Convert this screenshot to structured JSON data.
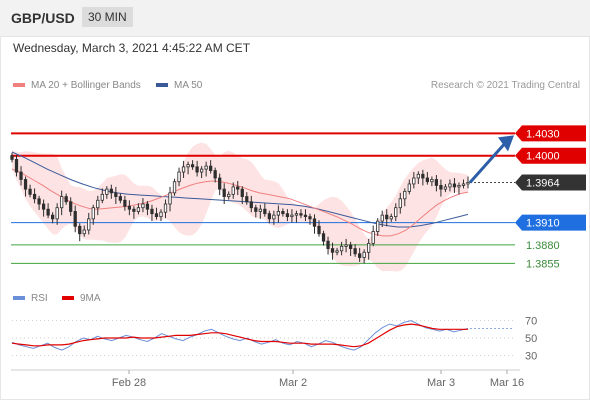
{
  "header": {
    "pair": "GBP/USD",
    "timeframe": "30 MIN"
  },
  "datetime": "Wednesday, March 3, 2021 4:45:22 AM CET",
  "legend": {
    "ma20": "MA 20 + Bollinger Bands",
    "ma50": "MA 50",
    "credit": "Research © 2021 Trading Central",
    "rsi": "RSI",
    "ma9": "9MA"
  },
  "colors": {
    "ma20": "#f08080",
    "ma50": "#3a5a9a",
    "band": "#fcdcdc",
    "resistance": "#e00000",
    "support": "#1f6fe0",
    "target": "#3fa33f",
    "candle": "#2e2e2e",
    "rsi": "#6b8fd8",
    "rsi_ma": "#e00000",
    "arrow": "#2d5fa8"
  },
  "chart_data": [
    {
      "type": "line",
      "title": "",
      "x_ticks": [
        "Feb 28",
        "Mar 2",
        "Mar 3",
        "Mar 16"
      ],
      "ylim": [
        1.383,
        1.4075
      ],
      "levels": [
        {
          "value": 1.403,
          "label": "1.4030",
          "kind": "resistance"
        },
        {
          "value": 1.4,
          "label": "1.4000",
          "kind": "resistance"
        },
        {
          "value": 1.3964,
          "label": "1.3964",
          "kind": "last"
        },
        {
          "value": 1.391,
          "label": "1.3910",
          "kind": "support"
        },
        {
          "value": 1.388,
          "label": "1.3880",
          "kind": "target"
        },
        {
          "value": 1.3855,
          "label": "1.3855",
          "kind": "target"
        }
      ],
      "close": [
        1.3995,
        1.3978,
        1.3968,
        1.3955,
        1.3948,
        1.3942,
        1.3935,
        1.3928,
        1.392,
        1.3915,
        1.393,
        1.3945,
        1.3938,
        1.3925,
        1.3905,
        1.3895,
        1.39,
        1.3915,
        1.393,
        1.394,
        1.3948,
        1.3955,
        1.395,
        1.3945,
        1.394,
        1.3932,
        1.3928,
        1.3925,
        1.393,
        1.3935,
        1.3928,
        1.3922,
        1.3918,
        1.3924,
        1.3935,
        1.395,
        1.3965,
        1.3978,
        1.3985,
        1.3988,
        1.3985,
        1.3978,
        1.3982,
        1.3986,
        1.398,
        1.397,
        1.3955,
        1.3945,
        1.3948,
        1.3958,
        1.3955,
        1.3945,
        1.3938,
        1.393,
        1.3925,
        1.3928,
        1.3922,
        1.3915,
        1.392,
        1.3925,
        1.3922,
        1.3918,
        1.392,
        1.3922,
        1.392,
        1.3918,
        1.3915,
        1.3905,
        1.3895,
        1.3885,
        1.3875,
        1.387,
        1.3872,
        1.3878,
        1.388,
        1.3875,
        1.3868,
        1.3863,
        1.387,
        1.3882,
        1.3898,
        1.3912,
        1.392,
        1.3915,
        1.3918,
        1.393,
        1.3942,
        1.3952,
        1.3962,
        1.397,
        1.3975,
        1.397,
        1.3965,
        1.3968,
        1.396,
        1.3955,
        1.3958,
        1.3962,
        1.3958,
        1.396,
        1.3962,
        1.3964
      ],
      "ma20": [
        1.3982,
        1.3978,
        1.3972,
        1.3966,
        1.396,
        1.3953,
        1.3947,
        1.3941,
        1.3936,
        1.3932,
        1.3929,
        1.3928,
        1.3929,
        1.393,
        1.3931,
        1.3932,
        1.3934,
        1.3936,
        1.3939,
        1.3943,
        1.3947,
        1.3952,
        1.3956,
        1.396,
        1.3963,
        1.3965,
        1.3966,
        1.3965,
        1.3963,
        1.396,
        1.3957,
        1.3953,
        1.395,
        1.3948,
        1.3946,
        1.3944,
        1.3942,
        1.3938,
        1.3934,
        1.393,
        1.3926,
        1.3922,
        1.3918,
        1.3913,
        1.3908,
        1.3902,
        1.3897,
        1.3894,
        1.3892,
        1.3892,
        1.3895,
        1.39,
        1.3908,
        1.3917,
        1.3926,
        1.3934,
        1.394,
        1.3945,
        1.3949,
        1.3951
      ],
      "ma50": [
        1.4005,
        1.3998,
        1.399,
        1.3982,
        1.3975,
        1.3968,
        1.3962,
        1.3957,
        1.3953,
        1.395,
        1.3948,
        1.3947,
        1.3946,
        1.3945,
        1.3944,
        1.3943,
        1.3942,
        1.3941,
        1.394,
        1.3939,
        1.3938,
        1.3937,
        1.3936,
        1.3935,
        1.3934,
        1.3932,
        1.3929,
        1.3925,
        1.3921,
        1.3917,
        1.3913,
        1.3909,
        1.3906,
        1.3904,
        1.3904,
        1.3906,
        1.3909,
        1.3913,
        1.3917,
        1.3921
      ],
      "legend": [
        "MA 20 + Bollinger Bands",
        "MA 50"
      ]
    },
    {
      "type": "line",
      "ylim": [
        20,
        80
      ],
      "y_ticks": [
        70,
        50,
        30
      ],
      "rsi": [
        45,
        42,
        40,
        38,
        41,
        44,
        39,
        36,
        40,
        46,
        50,
        48,
        52,
        49,
        47,
        50,
        53,
        51,
        48,
        46,
        50,
        55,
        52,
        49,
        47,
        51,
        54,
        58,
        60,
        56,
        52,
        49,
        47,
        50,
        46,
        43,
        45,
        48,
        44,
        42,
        46,
        44,
        40,
        43,
        47,
        45,
        41,
        38,
        36,
        40,
        48,
        56,
        62,
        66,
        64,
        68,
        70,
        66,
        62,
        60,
        58,
        60,
        57,
        59,
        61
      ],
      "rsi_ma": [
        44,
        43,
        42,
        41,
        41,
        42,
        42,
        42,
        43,
        45,
        47,
        48,
        49,
        50,
        50,
        50,
        50,
        51,
        50,
        50,
        50,
        51,
        52,
        53,
        53,
        53,
        54,
        55,
        56,
        56,
        55,
        53,
        51,
        49,
        47,
        46,
        46,
        46,
        45,
        44,
        44,
        44,
        43,
        43,
        43,
        43,
        42,
        41,
        40,
        41,
        44,
        49,
        54,
        59,
        63,
        65,
        66,
        65,
        63,
        61,
        60,
        60,
        60,
        60,
        60
      ],
      "legend": [
        "RSI",
        "9MA"
      ]
    }
  ]
}
